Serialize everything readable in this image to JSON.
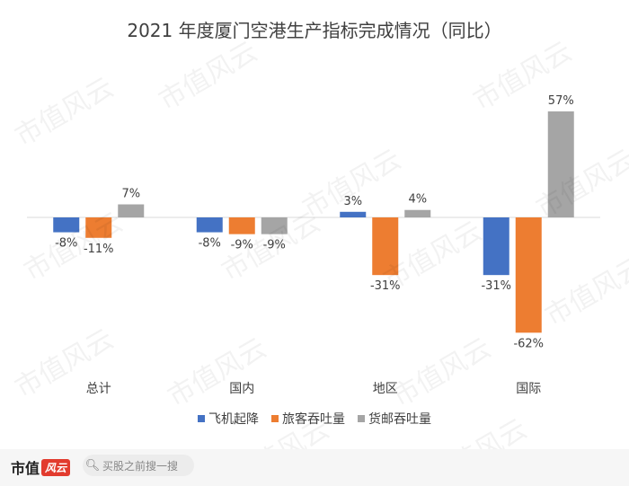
{
  "title": "2021 年度厦门空港生产指标完成情况（同比）",
  "colors": {
    "flights": "#4472c4",
    "passengers": "#ed7d31",
    "cargo": "#a5a5a5",
    "axis": "#d9d9d9",
    "text": "#404040"
  },
  "chart_data": {
    "type": "bar",
    "title": "2021 年度厦门空港生产指标完成情况（同比）",
    "categories": [
      "总计",
      "国内",
      "地区",
      "国际"
    ],
    "series": [
      {
        "name": "飞机起降",
        "values": [
          -8,
          -8,
          3,
          -31
        ],
        "labels": [
          "-8%",
          "-8%",
          "3%",
          "-31%"
        ]
      },
      {
        "name": "旅客吞吐量",
        "values": [
          -11,
          -9,
          -31,
          -62
        ],
        "labels": [
          "-11%",
          "-9%",
          "-31%",
          "-62%"
        ]
      },
      {
        "name": "货邮吞吐量",
        "values": [
          7,
          -9,
          4,
          57
        ],
        "labels": [
          "7%",
          "-9%",
          "4%",
          "57%"
        ]
      }
    ],
    "ylim": [
      -62,
      57
    ],
    "grid": false,
    "legend": "bottom"
  },
  "watermark_text": "市值风云",
  "footer": {
    "brand_text": "市值",
    "brand_mark": "风云",
    "search_placeholder": "买股之前搜一搜",
    "search_icon": "search-icon"
  }
}
